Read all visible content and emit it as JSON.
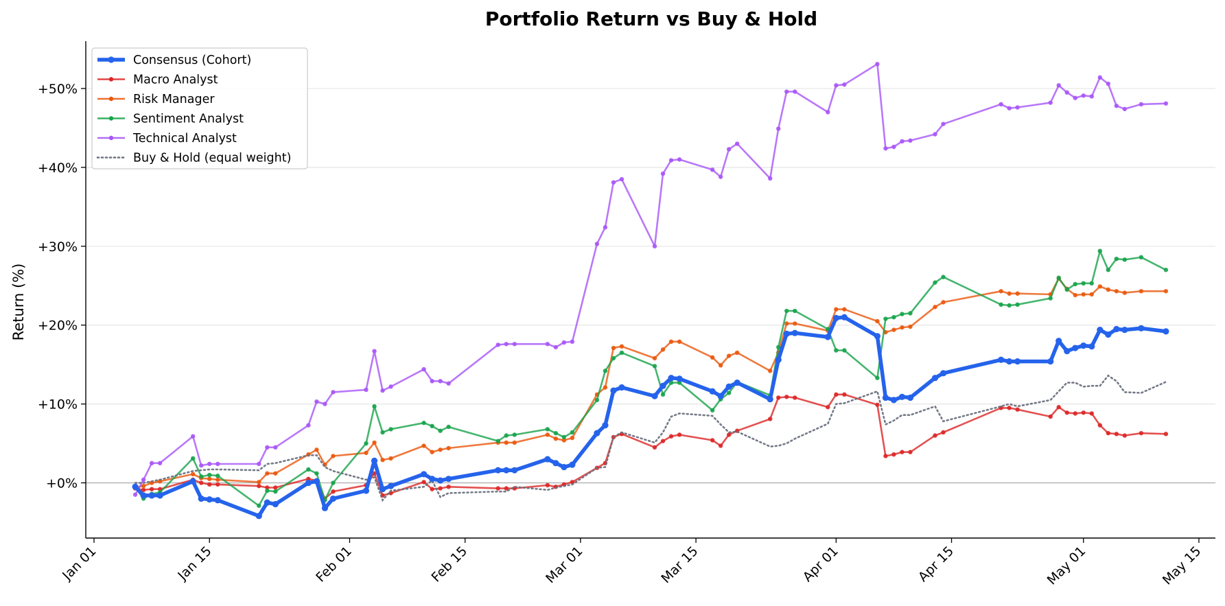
{
  "chart_data": {
    "type": "line",
    "title": "Portfolio Return vs Buy & Hold",
    "xlabel": "",
    "ylabel": "Return (%)",
    "grid": "horizontal",
    "legend_position": "top-left",
    "x_ticks": [
      "2025-01-01",
      "2025-01-15",
      "2025-02-01",
      "2025-02-15",
      "2025-03-01",
      "2025-03-15",
      "2025-04-01",
      "2025-04-15",
      "2025-05-01",
      "2025-05-15"
    ],
    "x_tick_labels": [
      "Jan 01",
      "Jan 15",
      "Feb 01",
      "Feb 15",
      "Mar 01",
      "Mar 15",
      "Apr 01",
      "Apr 15",
      "May 01",
      "May 15"
    ],
    "y_ticks": [
      0,
      10,
      20,
      30,
      40,
      50
    ],
    "y_tick_labels": [
      "+0%",
      "+10%",
      "+20%",
      "+30%",
      "+40%",
      "+50%"
    ],
    "xlim": [
      "2024-12-31",
      "2025-05-17"
    ],
    "ylim": [
      -7,
      56
    ],
    "x": [
      "2025-01-06",
      "2025-01-07",
      "2025-01-08",
      "2025-01-09",
      "2025-01-13",
      "2025-01-14",
      "2025-01-15",
      "2025-01-16",
      "2025-01-21",
      "2025-01-22",
      "2025-01-23",
      "2025-01-27",
      "2025-01-28",
      "2025-01-29",
      "2025-01-30",
      "2025-02-03",
      "2025-02-04",
      "2025-02-05",
      "2025-02-06",
      "2025-02-10",
      "2025-02-11",
      "2025-02-12",
      "2025-02-13",
      "2025-02-19",
      "2025-02-20",
      "2025-02-21",
      "2025-02-25",
      "2025-02-26",
      "2025-02-27",
      "2025-02-28",
      "2025-03-03",
      "2025-03-04",
      "2025-03-05",
      "2025-03-06",
      "2025-03-10",
      "2025-03-11",
      "2025-03-12",
      "2025-03-13",
      "2025-03-17",
      "2025-03-18",
      "2025-03-19",
      "2025-03-20",
      "2025-03-24",
      "2025-03-25",
      "2025-03-26",
      "2025-03-27",
      "2025-03-31",
      "2025-04-01",
      "2025-04-02",
      "2025-04-06",
      "2025-04-07",
      "2025-04-08",
      "2025-04-09",
      "2025-04-10",
      "2025-04-13",
      "2025-04-14",
      "2025-04-21",
      "2025-04-22",
      "2025-04-23",
      "2025-04-27",
      "2025-04-28",
      "2025-04-29",
      "2025-04-30",
      "2025-05-01",
      "2025-05-02",
      "2025-05-03",
      "2025-05-04",
      "2025-05-05",
      "2025-05-06",
      "2025-05-08",
      "2025-05-11"
    ],
    "series": [
      {
        "name": "Consensus (Cohort)",
        "color": "#2563eb",
        "style": "bold",
        "values": [
          -0.5,
          -1.6,
          -1.6,
          -1.6,
          0.2,
          -2.0,
          -2.1,
          -2.2,
          -4.2,
          -2.5,
          -2.7,
          0.0,
          0.2,
          -3.2,
          -2.0,
          -1.0,
          2.8,
          -0.8,
          -0.4,
          1.1,
          0.5,
          0.3,
          0.5,
          1.6,
          1.6,
          1.6,
          3.0,
          2.5,
          2.0,
          2.3,
          6.3,
          7.3,
          11.7,
          12.1,
          11.0,
          12.3,
          13.3,
          13.2,
          11.6,
          11.0,
          12.2,
          12.7,
          10.6,
          15.6,
          18.9,
          19.0,
          18.5,
          20.9,
          21.0,
          18.6,
          10.8,
          10.5,
          10.9,
          10.8,
          13.3,
          13.9,
          15.6,
          15.4,
          15.4,
          15.4,
          18.0,
          16.7,
          17.1,
          17.4,
          17.3,
          19.4,
          18.8,
          19.5,
          19.4,
          19.6,
          19.2
        ]
      },
      {
        "name": "Macro Analyst",
        "color": "#dc2626",
        "values": [
          -0.7,
          -0.9,
          -0.8,
          -0.8,
          0.4,
          0.0,
          -0.2,
          -0.2,
          -0.4,
          -0.6,
          -0.6,
          0.5,
          0.3,
          -2.0,
          -1.1,
          -0.3,
          1.2,
          -1.6,
          -1.3,
          0.1,
          -0.8,
          -0.7,
          -0.5,
          -0.7,
          -0.7,
          -0.7,
          -0.3,
          -0.5,
          -0.2,
          0.1,
          1.9,
          2.5,
          5.8,
          6.2,
          4.5,
          5.3,
          5.9,
          6.1,
          5.4,
          4.7,
          6.1,
          6.6,
          8.1,
          10.8,
          10.9,
          10.8,
          9.6,
          11.2,
          11.2,
          9.9,
          3.4,
          3.6,
          3.9,
          3.9,
          6.0,
          6.4,
          9.5,
          9.5,
          9.3,
          8.4,
          9.6,
          8.9,
          8.8,
          8.9,
          8.8,
          7.3,
          6.3,
          6.2,
          6.0,
          6.3,
          6.2
        ]
      },
      {
        "name": "Risk Manager",
        "color": "#ea580c",
        "values": [
          -0.6,
          -0.4,
          0.0,
          0.2,
          1.1,
          0.6,
          0.5,
          0.4,
          0.1,
          1.2,
          1.2,
          3.6,
          4.2,
          2.3,
          3.4,
          3.8,
          5.1,
          2.9,
          3.1,
          4.7,
          3.9,
          4.2,
          4.4,
          5.1,
          5.1,
          5.1,
          6.1,
          5.6,
          5.4,
          5.7,
          11.2,
          12.1,
          17.1,
          17.3,
          15.8,
          16.9,
          17.9,
          17.9,
          15.9,
          14.9,
          16.1,
          16.5,
          14.2,
          16.5,
          20.2,
          20.2,
          19.3,
          22.0,
          22.0,
          20.5,
          19.1,
          19.4,
          19.7,
          19.8,
          22.3,
          22.9,
          24.3,
          24.0,
          24.0,
          23.9,
          25.9,
          24.6,
          23.8,
          23.9,
          23.9,
          24.9,
          24.5,
          24.3,
          24.1,
          24.3,
          24.3
        ]
      },
      {
        "name": "Sentiment Analyst",
        "color": "#16a34a",
        "values": [
          -0.6,
          -2.0,
          -1.4,
          -1.2,
          3.1,
          0.8,
          1.0,
          0.9,
          -2.9,
          -1.0,
          -1.1,
          1.7,
          1.2,
          -2.2,
          0.0,
          5.0,
          9.7,
          6.4,
          6.8,
          7.6,
          7.2,
          6.6,
          7.1,
          5.3,
          6.0,
          6.1,
          6.8,
          6.3,
          5.8,
          6.4,
          10.5,
          14.2,
          15.8,
          16.5,
          14.8,
          11.2,
          12.7,
          12.7,
          9.2,
          10.6,
          11.4,
          12.8,
          11.1,
          17.2,
          21.8,
          21.8,
          19.5,
          16.8,
          16.8,
          13.3,
          20.8,
          21.0,
          21.4,
          21.5,
          25.4,
          26.1,
          22.6,
          22.5,
          22.6,
          23.4,
          26.0,
          24.5,
          25.2,
          25.3,
          25.3,
          29.4,
          27.0,
          28.4,
          28.3,
          28.6,
          27.0
        ]
      },
      {
        "name": "Technical Analyst",
        "color": "#a855f7",
        "values": [
          -1.5,
          0.4,
          2.5,
          2.5,
          5.9,
          2.2,
          2.4,
          2.4,
          2.4,
          4.5,
          4.5,
          7.3,
          10.3,
          10.0,
          11.5,
          11.8,
          16.7,
          11.7,
          12.2,
          14.4,
          12.9,
          12.9,
          12.6,
          17.5,
          17.6,
          17.6,
          17.6,
          17.2,
          17.8,
          17.9,
          30.3,
          32.4,
          38.1,
          38.5,
          30.0,
          39.2,
          40.9,
          41.0,
          39.7,
          38.8,
          42.3,
          43.0,
          38.6,
          44.9,
          49.6,
          49.6,
          47.0,
          50.4,
          50.5,
          53.1,
          42.4,
          42.6,
          43.3,
          43.4,
          44.2,
          45.5,
          48.0,
          47.5,
          47.6,
          48.2,
          50.4,
          49.5,
          48.8,
          49.1,
          49.0,
          51.4,
          50.6,
          47.8,
          47.4,
          48.0,
          48.1
        ]
      },
      {
        "name": "Buy & Hold (equal weight)",
        "color": "#6b7280",
        "style": "dotted",
        "values": [
          0.0,
          0.0,
          0.2,
          0.4,
          1.5,
          1.6,
          1.7,
          1.7,
          1.6,
          2.4,
          2.5,
          3.5,
          3.5,
          2.0,
          1.5,
          0.4,
          0.7,
          -2.2,
          -1.0,
          -0.5,
          0.3,
          -1.8,
          -1.3,
          -1.1,
          -1.1,
          -0.5,
          -0.9,
          -0.6,
          -0.4,
          -0.2,
          1.9,
          2.0,
          5.8,
          6.4,
          5.1,
          6.4,
          8.4,
          8.8,
          8.5,
          7.4,
          6.4,
          6.5,
          4.6,
          4.7,
          5.0,
          5.6,
          7.5,
          10.0,
          10.1,
          11.6,
          7.4,
          7.9,
          8.6,
          8.6,
          9.7,
          7.8,
          9.7,
          10.0,
          9.7,
          10.5,
          11.6,
          12.7,
          12.7,
          12.2,
          12.3,
          12.3,
          13.6,
          12.9,
          11.5,
          11.4,
          12.8
        ]
      }
    ]
  }
}
